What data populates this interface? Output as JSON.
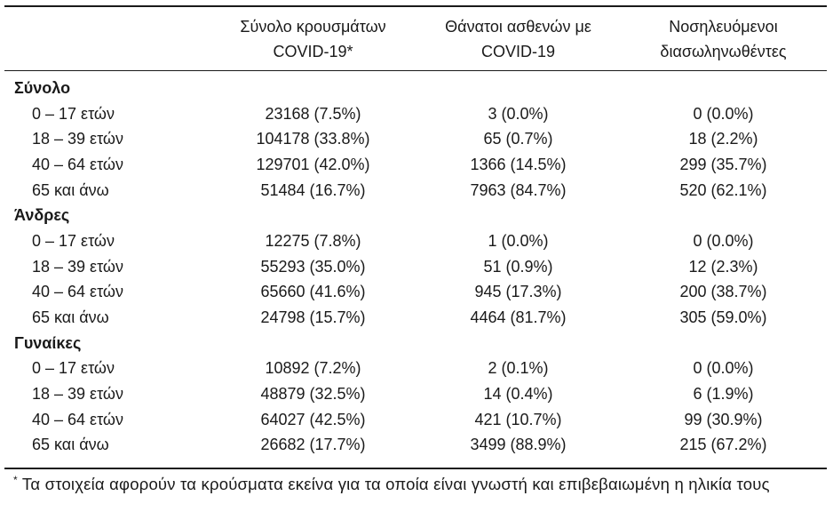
{
  "table": {
    "columns": [
      {
        "label_line1": "Σύνολο κρουσμάτων",
        "label_line2": "COVID-19*"
      },
      {
        "label_line1": "Θάνατοι ασθενών με",
        "label_line2": "COVID-19"
      },
      {
        "label_line1": "Νοσηλευόμενοι",
        "label_line2": "διασωληνωθέντες"
      }
    ],
    "sections": [
      {
        "label": "Σύνολο",
        "rows": [
          {
            "age": "0 – 17 ετών",
            "cases": "23168 (7.5%)",
            "deaths": "3 (0.0%)",
            "intubated": "0 (0.0%)"
          },
          {
            "age": "18 – 39 ετών",
            "cases": "104178 (33.8%)",
            "deaths": "65 (0.7%)",
            "intubated": "18 (2.2%)"
          },
          {
            "age": "40 – 64 ετών",
            "cases": "129701 (42.0%)",
            "deaths": "1366 (14.5%)",
            "intubated": "299 (35.7%)"
          },
          {
            "age": "65 και άνω",
            "cases": "51484 (16.7%)",
            "deaths": "7963 (84.7%)",
            "intubated": "520 (62.1%)"
          }
        ]
      },
      {
        "label": "Άνδρες",
        "rows": [
          {
            "age": "0 – 17 ετών",
            "cases": "12275 (7.8%)",
            "deaths": "1 (0.0%)",
            "intubated": "0 (0.0%)"
          },
          {
            "age": "18 – 39 ετών",
            "cases": "55293 (35.0%)",
            "deaths": "51 (0.9%)",
            "intubated": "12 (2.3%)"
          },
          {
            "age": "40 – 64 ετών",
            "cases": "65660 (41.6%)",
            "deaths": "945 (17.3%)",
            "intubated": "200 (38.7%)"
          },
          {
            "age": "65 και άνω",
            "cases": "24798 (15.7%)",
            "deaths": "4464 (81.7%)",
            "intubated": "305 (59.0%)"
          }
        ]
      },
      {
        "label": "Γυναίκες",
        "rows": [
          {
            "age": "0 – 17 ετών",
            "cases": "10892 (7.2%)",
            "deaths": "2 (0.1%)",
            "intubated": "0 (0.0%)"
          },
          {
            "age": "18 – 39 ετών",
            "cases": "48879 (32.5%)",
            "deaths": "14 (0.4%)",
            "intubated": "6 (1.9%)"
          },
          {
            "age": "40 – 64 ετών",
            "cases": "64027 (42.5%)",
            "deaths": "421 (10.7%)",
            "intubated": "99 (30.9%)"
          },
          {
            "age": "65 και άνω",
            "cases": "26682 (17.7%)",
            "deaths": "3499 (88.9%)",
            "intubated": "215 (67.2%)"
          }
        ]
      }
    ],
    "footnote": {
      "marker": "*",
      "text": "Τα στοιχεία αφορούν τα κρούσματα εκείνα για τα οποία είναι γνωστή και επιβεβαιωμένη η ηλικία τους"
    }
  },
  "colors": {
    "text": "#1a1a1a",
    "rule": "#1a1a1a",
    "background": "#ffffff"
  }
}
